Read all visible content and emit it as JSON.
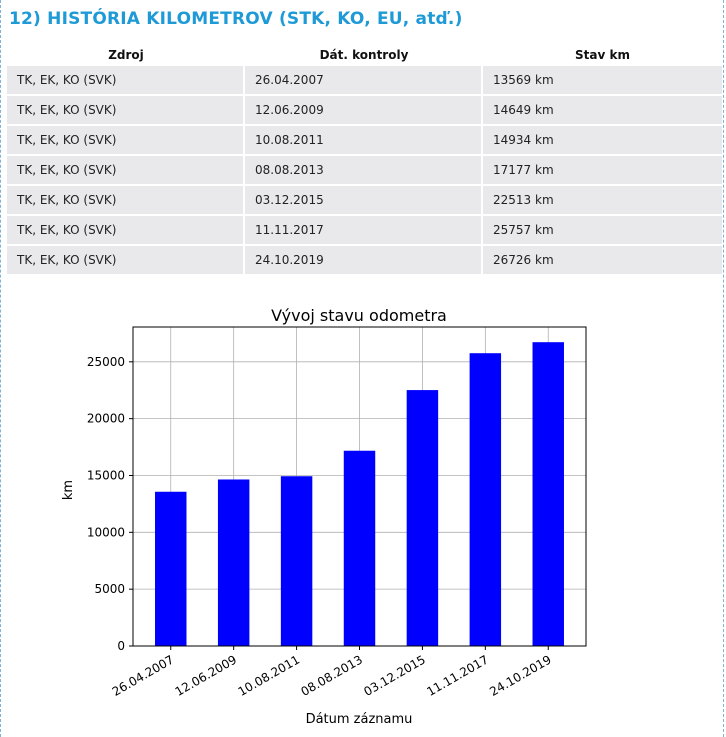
{
  "section": {
    "title": "12) HISTÓRIA KILOMETROV (STK, KO, EU, atď.)"
  },
  "table": {
    "headers": [
      "Zdroj",
      "Dát. kontroly",
      "Stav km"
    ],
    "rows": [
      [
        "TK, EK, KO (SVK)",
        "26.04.2007",
        "13569 km"
      ],
      [
        "TK, EK, KO (SVK)",
        "12.06.2009",
        "14649 km"
      ],
      [
        "TK, EK, KO (SVK)",
        "10.08.2011",
        "14934 km"
      ],
      [
        "TK, EK, KO (SVK)",
        "08.08.2013",
        "17177 km"
      ],
      [
        "TK, EK, KO (SVK)",
        "03.12.2015",
        "22513 km"
      ],
      [
        "TK, EK, KO (SVK)",
        "11.11.2017",
        "25757 km"
      ],
      [
        "TK, EK, KO (SVK)",
        "24.10.2019",
        "26726 km"
      ]
    ]
  },
  "chart_data": {
    "type": "bar",
    "title": "Vývoj stavu odometra",
    "xlabel": "Dátum záznamu",
    "ylabel": "km",
    "categories": [
      "26.04.2007",
      "12.06.2009",
      "10.08.2011",
      "08.08.2013",
      "03.12.2015",
      "11.11.2017",
      "24.10.2019"
    ],
    "values": [
      13569,
      14649,
      14934,
      17177,
      22513,
      25757,
      26726
    ],
    "ylim": [
      0,
      28062
    ],
    "yticks": [
      0,
      5000,
      10000,
      15000,
      20000,
      25000
    ],
    "grid": true,
    "bar_color": "#0000ff",
    "legend": "none"
  }
}
